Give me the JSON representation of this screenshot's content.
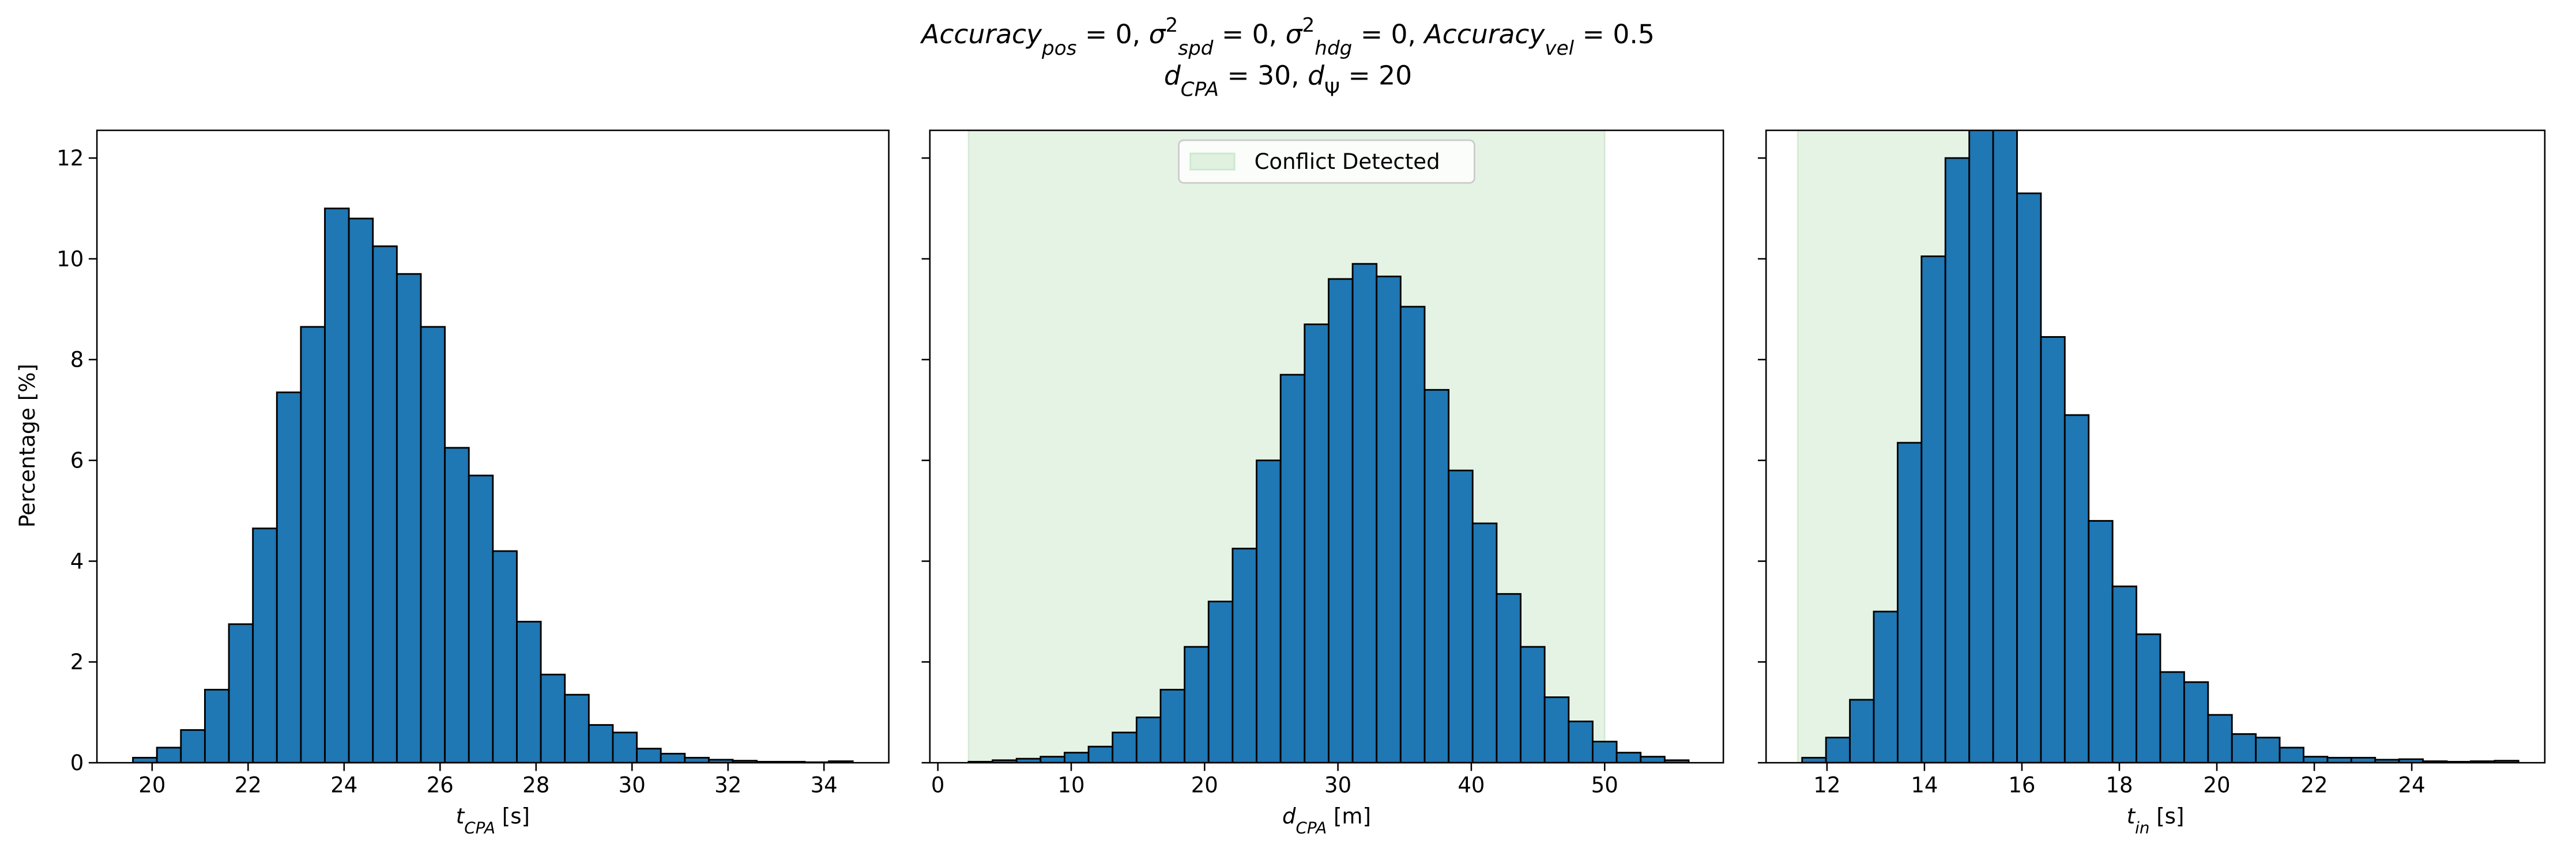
{
  "title": [
    [
      {
        "text": "Accuracy",
        "italic": true
      },
      {
        "text": "pos",
        "italic": true,
        "shift": "sub"
      },
      {
        "text": " = 0, "
      },
      {
        "text": "σ",
        "italic": true
      },
      {
        "text": "2",
        "shift": "super"
      },
      {
        "text": "spd",
        "italic": true,
        "shift": "sub"
      },
      {
        "text": " = 0, "
      },
      {
        "text": "σ",
        "italic": true
      },
      {
        "text": "2",
        "shift": "super"
      },
      {
        "text": "hdg",
        "italic": true,
        "shift": "sub"
      },
      {
        "text": " = 0, "
      },
      {
        "text": "Accuracy",
        "italic": true
      },
      {
        "text": "vel",
        "italic": true,
        "shift": "sub"
      },
      {
        "text": " = 0.5"
      }
    ],
    [
      {
        "text": "d",
        "italic": true
      },
      {
        "text": "CPA",
        "italic": true,
        "shift": "sub"
      },
      {
        "text": " = 30, "
      },
      {
        "text": "d",
        "italic": true
      },
      {
        "text": "Ψ",
        "shift": "sub"
      },
      {
        "text": " = 20"
      }
    ]
  ],
  "chart_data": [
    {
      "type": "histogram",
      "color": "#1f77b4",
      "ylabel": "Percentage [%]",
      "xlabel": [
        {
          "text": "t",
          "italic": true
        },
        {
          "text": "CPA",
          "italic": true,
          "shift": "sub"
        },
        {
          "text": " [s]"
        }
      ],
      "bins": [
        19.6,
        20.1,
        20.6,
        21.1,
        21.6,
        22.1,
        22.6,
        23.1,
        23.6,
        24.1,
        24.6,
        25.1,
        25.6,
        26.1,
        26.6,
        27.1,
        27.6,
        28.1,
        28.6,
        29.1,
        29.6,
        30.1,
        30.6,
        31.1,
        31.6,
        32.1,
        32.6,
        33.1,
        33.6,
        34.1,
        34.6
      ],
      "values": [
        0.1,
        0.3,
        0.65,
        1.45,
        2.75,
        4.65,
        7.35,
        8.65,
        11.0,
        10.8,
        10.25,
        9.7,
        8.65,
        6.25,
        5.7,
        4.2,
        2.8,
        1.75,
        1.35,
        0.75,
        0.6,
        0.28,
        0.18,
        0.1,
        0.06,
        0.04,
        0.02,
        0.02,
        0.01,
        0.03
      ],
      "xlim": [
        18.85,
        35.35
      ],
      "xticks": [
        20,
        22,
        24,
        26,
        28,
        30,
        32,
        34
      ],
      "ylim": [
        0,
        12.55
      ],
      "yticks": [
        0,
        2,
        4,
        6,
        8,
        10,
        12
      ],
      "ytick_labels": true
    },
    {
      "type": "histogram",
      "color": "#1f77b4",
      "xlabel": [
        {
          "text": "d",
          "italic": true
        },
        {
          "text": "CPA",
          "italic": true,
          "shift": "sub"
        },
        {
          "text": " [m]"
        }
      ],
      "bins": [
        2.3,
        4.1,
        5.9,
        7.7,
        9.5,
        11.3,
        13.1,
        14.9,
        16.7,
        18.5,
        20.3,
        22.1,
        23.9,
        25.7,
        27.5,
        29.3,
        31.1,
        32.9,
        34.7,
        36.5,
        38.3,
        40.1,
        41.9,
        43.7,
        45.5,
        47.3,
        49.1,
        50.9,
        52.7,
        54.5,
        56.3
      ],
      "values": [
        0.02,
        0.05,
        0.08,
        0.12,
        0.2,
        0.32,
        0.6,
        0.9,
        1.45,
        2.3,
        3.2,
        4.25,
        6.0,
        7.7,
        8.7,
        9.6,
        9.9,
        9.65,
        9.05,
        7.4,
        5.8,
        4.75,
        3.35,
        2.3,
        1.3,
        0.82,
        0.42,
        0.2,
        0.12,
        0.05
      ],
      "xlim": [
        -0.6,
        58.9
      ],
      "xticks": [
        0,
        10,
        20,
        30,
        40,
        50
      ],
      "ylim": [
        0,
        12.55
      ],
      "yticks": [
        0,
        2,
        4,
        6,
        8,
        10,
        12
      ],
      "ytick_labels": false,
      "span": {
        "xmin": 2.3,
        "xmax": 50,
        "color": "#2ca02c",
        "label": "Conflict Detected"
      },
      "legend": "upper center"
    },
    {
      "type": "histogram",
      "color": "#1f77b4",
      "xlabel": [
        {
          "text": "t",
          "italic": true
        },
        {
          "text": "in",
          "italic": true,
          "shift": "sub"
        },
        {
          "text": " [s]"
        }
      ],
      "bins": [
        11.49,
        11.98,
        12.47,
        12.96,
        13.45,
        13.94,
        14.43,
        14.92,
        15.41,
        15.9,
        16.39,
        16.88,
        17.37,
        17.86,
        18.35,
        18.84,
        19.33,
        19.82,
        20.31,
        20.8,
        21.29,
        21.78,
        22.27,
        22.76,
        23.25,
        23.74,
        24.23,
        24.72,
        25.21,
        25.7,
        26.19
      ],
      "values": [
        0.1,
        0.5,
        1.25,
        3.0,
        6.35,
        10.05,
        12.0,
        13.1,
        12.9,
        11.3,
        8.45,
        6.9,
        4.8,
        3.5,
        2.55,
        1.8,
        1.6,
        0.95,
        0.57,
        0.5,
        0.3,
        0.12,
        0.1,
        0.1,
        0.06,
        0.07,
        0.03,
        0.02,
        0.03,
        0.04
      ],
      "xlim": [
        10.75,
        26.73
      ],
      "xticks": [
        12,
        14,
        16,
        18,
        20,
        22,
        24
      ],
      "ylim": [
        0,
        12.55
      ],
      "yticks": [
        0,
        2,
        4,
        6,
        8,
        10,
        12
      ],
      "ytick_labels": false,
      "span": {
        "xmin": 11.4,
        "xmax": 15.0,
        "color": "#2ca02c"
      }
    }
  ]
}
